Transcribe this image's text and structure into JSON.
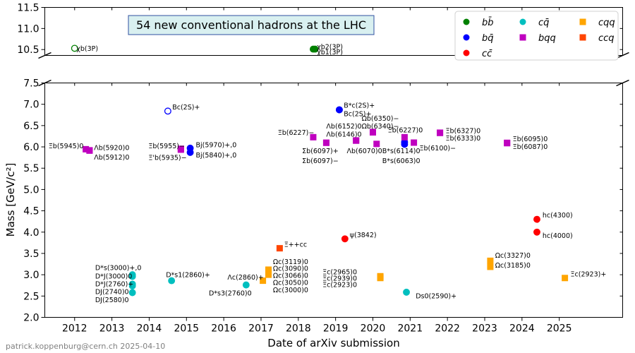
{
  "chart_data": {
    "type": "scatter",
    "title": "54 new conventional hadrons at the LHC",
    "xlabel": "Date of arXiv submission",
    "ylabel": "Mass [GeV/c²]",
    "credit": "patrick.koppenburg@cern.ch 2025-04-10",
    "xlim": [
      2011.2,
      2026.7
    ],
    "ylim_lower": [
      2.0,
      7.5
    ],
    "ylim_upper": [
      10.4,
      11.5
    ],
    "x_ticks": [
      "2012",
      "2013",
      "2014",
      "2015",
      "2016",
      "2017",
      "2018",
      "2019",
      "2020",
      "2021",
      "2022",
      "2023",
      "2024",
      "2025"
    ],
    "y_ticks_lower": [
      "2.0",
      "2.5",
      "3.0",
      "3.5",
      "4.0",
      "4.5",
      "5.0",
      "5.5",
      "6.0",
      "6.5",
      "7.0",
      "7.5"
    ],
    "y_ticks_upper": [
      "10.5",
      "11.0",
      "11.5"
    ],
    "legend": {
      "placement": "top-right",
      "entries": [
        {
          "key": "bb",
          "label": "bb̄",
          "marker": "circle",
          "color": "#008000"
        },
        {
          "key": "cq",
          "label": "cq̄",
          "marker": "circle",
          "color": "#00bfbf"
        },
        {
          "key": "cqq",
          "label": "cqq",
          "marker": "square",
          "color": "#ffa500"
        },
        {
          "key": "bq",
          "label": "bq̄",
          "marker": "circle",
          "color": "#0000ff"
        },
        {
          "key": "bqq",
          "label": "bqq",
          "marker": "square",
          "color": "#bf00bf"
        },
        {
          "key": "ccq",
          "label": "ccq",
          "marker": "square",
          "color": "#ff4500"
        },
        {
          "key": "cc",
          "label": "cc̄",
          "marker": "circle",
          "color": "#ff0000"
        }
      ]
    },
    "points": [
      {
        "g": "bb",
        "x": 2012.0,
        "y": 10.53,
        "open": true
      },
      {
        "g": "bb",
        "x": 2018.4,
        "y": 10.51
      },
      {
        "g": "bb",
        "x": 2018.45,
        "y": 10.51
      },
      {
        "g": "bq",
        "x": 2014.5,
        "y": 6.84,
        "open": true
      },
      {
        "g": "bq",
        "x": 2015.1,
        "y": 5.97
      },
      {
        "g": "bq",
        "x": 2015.1,
        "y": 5.87
      },
      {
        "g": "bq",
        "x": 2019.1,
        "y": 6.87
      },
      {
        "g": "bq",
        "x": 2019.1,
        "y": 6.87
      },
      {
        "g": "bq",
        "x": 2020.85,
        "y": 6.11
      },
      {
        "g": "bq",
        "x": 2020.85,
        "y": 6.06
      },
      {
        "g": "bqq",
        "x": 2012.3,
        "y": 5.945
      },
      {
        "g": "bqq",
        "x": 2012.4,
        "y": 5.92
      },
      {
        "g": "bqq",
        "x": 2012.4,
        "y": 5.912
      },
      {
        "g": "bqq",
        "x": 2014.85,
        "y": 5.955
      },
      {
        "g": "bqq",
        "x": 2014.85,
        "y": 5.935
      },
      {
        "g": "bqq",
        "x": 2018.4,
        "y": 6.227
      },
      {
        "g": "bqq",
        "x": 2018.75,
        "y": 6.097
      },
      {
        "g": "bqq",
        "x": 2018.75,
        "y": 6.097
      },
      {
        "g": "bqq",
        "x": 2019.55,
        "y": 6.152
      },
      {
        "g": "bqq",
        "x": 2019.55,
        "y": 6.146
      },
      {
        "g": "bqq",
        "x": 2020.0,
        "y": 6.35
      },
      {
        "g": "bqq",
        "x": 2020.0,
        "y": 6.34
      },
      {
        "g": "bqq",
        "x": 2020.1,
        "y": 6.07
      },
      {
        "g": "bqq",
        "x": 2020.85,
        "y": 6.227
      },
      {
        "g": "bqq",
        "x": 2021.1,
        "y": 6.1
      },
      {
        "g": "bqq",
        "x": 2021.8,
        "y": 6.327
      },
      {
        "g": "bqq",
        "x": 2021.8,
        "y": 6.333
      },
      {
        "g": "bqq",
        "x": 2023.6,
        "y": 6.095
      },
      {
        "g": "bqq",
        "x": 2023.6,
        "y": 6.087
      },
      {
        "g": "cq",
        "x": 2013.55,
        "y": 3.0
      },
      {
        "g": "cq",
        "x": 2013.55,
        "y": 2.96
      },
      {
        "g": "cq",
        "x": 2013.55,
        "y": 2.78
      },
      {
        "g": "cq",
        "x": 2013.55,
        "y": 2.74
      },
      {
        "g": "cq",
        "x": 2013.55,
        "y": 2.58
      },
      {
        "g": "cq",
        "x": 2014.6,
        "y": 2.86
      },
      {
        "g": "cq",
        "x": 2016.6,
        "y": 2.76
      },
      {
        "g": "cq",
        "x": 2020.9,
        "y": 2.59
      },
      {
        "g": "cqq",
        "x": 2017.05,
        "y": 2.86
      },
      {
        "g": "cqq",
        "x": 2017.2,
        "y": 3.119
      },
      {
        "g": "cqq",
        "x": 2017.2,
        "y": 3.09
      },
      {
        "g": "cqq",
        "x": 2017.2,
        "y": 3.066
      },
      {
        "g": "cqq",
        "x": 2017.2,
        "y": 3.05
      },
      {
        "g": "cqq",
        "x": 2017.2,
        "y": 3.0
      },
      {
        "g": "cqq",
        "x": 2020.2,
        "y": 2.965
      },
      {
        "g": "cqq",
        "x": 2020.2,
        "y": 2.939
      },
      {
        "g": "cqq",
        "x": 2020.2,
        "y": 2.923
      },
      {
        "g": "cqq",
        "x": 2023.15,
        "y": 3.327
      },
      {
        "g": "cqq",
        "x": 2023.15,
        "y": 3.185
      },
      {
        "g": "cqq",
        "x": 2025.15,
        "y": 2.923
      },
      {
        "g": "ccq",
        "x": 2017.5,
        "y": 3.621
      },
      {
        "g": "cc",
        "x": 2019.25,
        "y": 3.842
      },
      {
        "g": "cc",
        "x": 2024.4,
        "y": 4.3
      },
      {
        "g": "cc",
        "x": 2024.4,
        "y": 4.0
      }
    ],
    "annotations": [
      {
        "text": "χb(3P)",
        "x": 2012.05,
        "y": 10.52,
        "seg": "u"
      },
      {
        "text": "χb2(3P)",
        "x": 2018.5,
        "y": 10.56,
        "seg": "u"
      },
      {
        "text": "χb1(3P)",
        "x": 2018.5,
        "y": 10.44,
        "seg": "u"
      },
      {
        "text": "Bc(2S)+",
        "x": 2014.62,
        "y": 6.93
      },
      {
        "text": "B*c(2S)+",
        "x": 2019.22,
        "y": 6.97
      },
      {
        "text": "Bc(2S)+",
        "x": 2019.22,
        "y": 6.77
      },
      {
        "text": "Ξb(5945)0",
        "x": 2011.3,
        "y": 6.02
      },
      {
        "text": "Λb(5920)0",
        "x": 2012.52,
        "y": 5.98
      },
      {
        "text": "Λb(5912)0",
        "x": 2012.52,
        "y": 5.75
      },
      {
        "text": "Ξb(5955)−",
        "x": 2013.98,
        "y": 6.02
      },
      {
        "text": "Ξ'b(5935)−",
        "x": 2013.98,
        "y": 5.74
      },
      {
        "text": "Bj(5970)+,0",
        "x": 2015.25,
        "y": 6.04
      },
      {
        "text": "Bj(5840)+,0",
        "x": 2015.25,
        "y": 5.8
      },
      {
        "text": "Ξb(6227)−",
        "x": 2017.45,
        "y": 6.33
      },
      {
        "text": "Σb(6097)+",
        "x": 2018.1,
        "y": 5.9
      },
      {
        "text": "Σb(6097)−",
        "x": 2018.1,
        "y": 5.67
      },
      {
        "text": "Λb(6152)0",
        "x": 2018.75,
        "y": 6.48
      },
      {
        "text": "Λb(6146)0",
        "x": 2018.75,
        "y": 6.29
      },
      {
        "text": "Ωb(6350)−",
        "x": 2019.7,
        "y": 6.66
      },
      {
        "text": "Ωb(6340)−",
        "x": 2019.7,
        "y": 6.48
      },
      {
        "text": "Ξb(6227)0",
        "x": 2020.4,
        "y": 6.39
      },
      {
        "text": "Λb(6070)0",
        "x": 2019.3,
        "y": 5.9
      },
      {
        "text": "B*s(6114)0",
        "x": 2020.25,
        "y": 5.9
      },
      {
        "text": "B*s(6063)0",
        "x": 2020.25,
        "y": 5.67
      },
      {
        "text": "Ξb(6100)−",
        "x": 2021.25,
        "y": 5.97
      },
      {
        "text": "Ξb(6327)0",
        "x": 2021.95,
        "y": 6.37
      },
      {
        "text": "Ξb(6333)0",
        "x": 2021.95,
        "y": 6.2
      },
      {
        "text": "Ξb(6095)0",
        "x": 2023.75,
        "y": 6.18
      },
      {
        "text": "Ξb(6087)0",
        "x": 2023.75,
        "y": 6.0
      },
      {
        "text": "D*s(3000)+,0",
        "x": 2012.55,
        "y": 3.16
      },
      {
        "text": "D*J(3000)0",
        "x": 2012.55,
        "y": 2.96
      },
      {
        "text": "D*J(2760)+",
        "x": 2012.55,
        "y": 2.78
      },
      {
        "text": "DJ(2740)0",
        "x": 2012.55,
        "y": 2.6
      },
      {
        "text": "DJ(2580)0",
        "x": 2012.55,
        "y": 2.41
      },
      {
        "text": "D*s1(2860)+",
        "x": 2014.45,
        "y": 2.99
      },
      {
        "text": "D*s3(2760)0",
        "x": 2015.6,
        "y": 2.56
      },
      {
        "text": "Λc(2860)+",
        "x": 2016.1,
        "y": 2.94
      },
      {
        "text": "Ξ++cc",
        "x": 2017.62,
        "y": 3.71
      },
      {
        "text": "ψ(3842)",
        "x": 2019.38,
        "y": 3.93
      },
      {
        "text": "Ωc(3119)0",
        "x": 2017.32,
        "y": 3.3
      },
      {
        "text": "Ωc(3090)0",
        "x": 2017.32,
        "y": 3.14
      },
      {
        "text": "Ωc(3066)0",
        "x": 2017.32,
        "y": 2.98
      },
      {
        "text": "Ωc(3050)0",
        "x": 2017.32,
        "y": 2.81
      },
      {
        "text": "Ωc(3000)0",
        "x": 2017.32,
        "y": 2.64
      },
      {
        "text": "Ξc(2965)0",
        "x": 2018.65,
        "y": 3.06
      },
      {
        "text": "Ξc(2939)0",
        "x": 2018.65,
        "y": 2.91
      },
      {
        "text": "Ξc(2923)0",
        "x": 2018.65,
        "y": 2.76
      },
      {
        "text": "Ds0(2590)+",
        "x": 2021.15,
        "y": 2.5
      },
      {
        "text": "Ωc(3327)0",
        "x": 2023.28,
        "y": 3.45
      },
      {
        "text": "Ωc(3185)0",
        "x": 2023.28,
        "y": 3.22
      },
      {
        "text": "Ξc(2923)+",
        "x": 2025.3,
        "y": 3.01
      },
      {
        "text": "hc(4300)",
        "x": 2024.55,
        "y": 4.39
      },
      {
        "text": "hc(4000)",
        "x": 2024.55,
        "y": 3.91
      }
    ]
  }
}
